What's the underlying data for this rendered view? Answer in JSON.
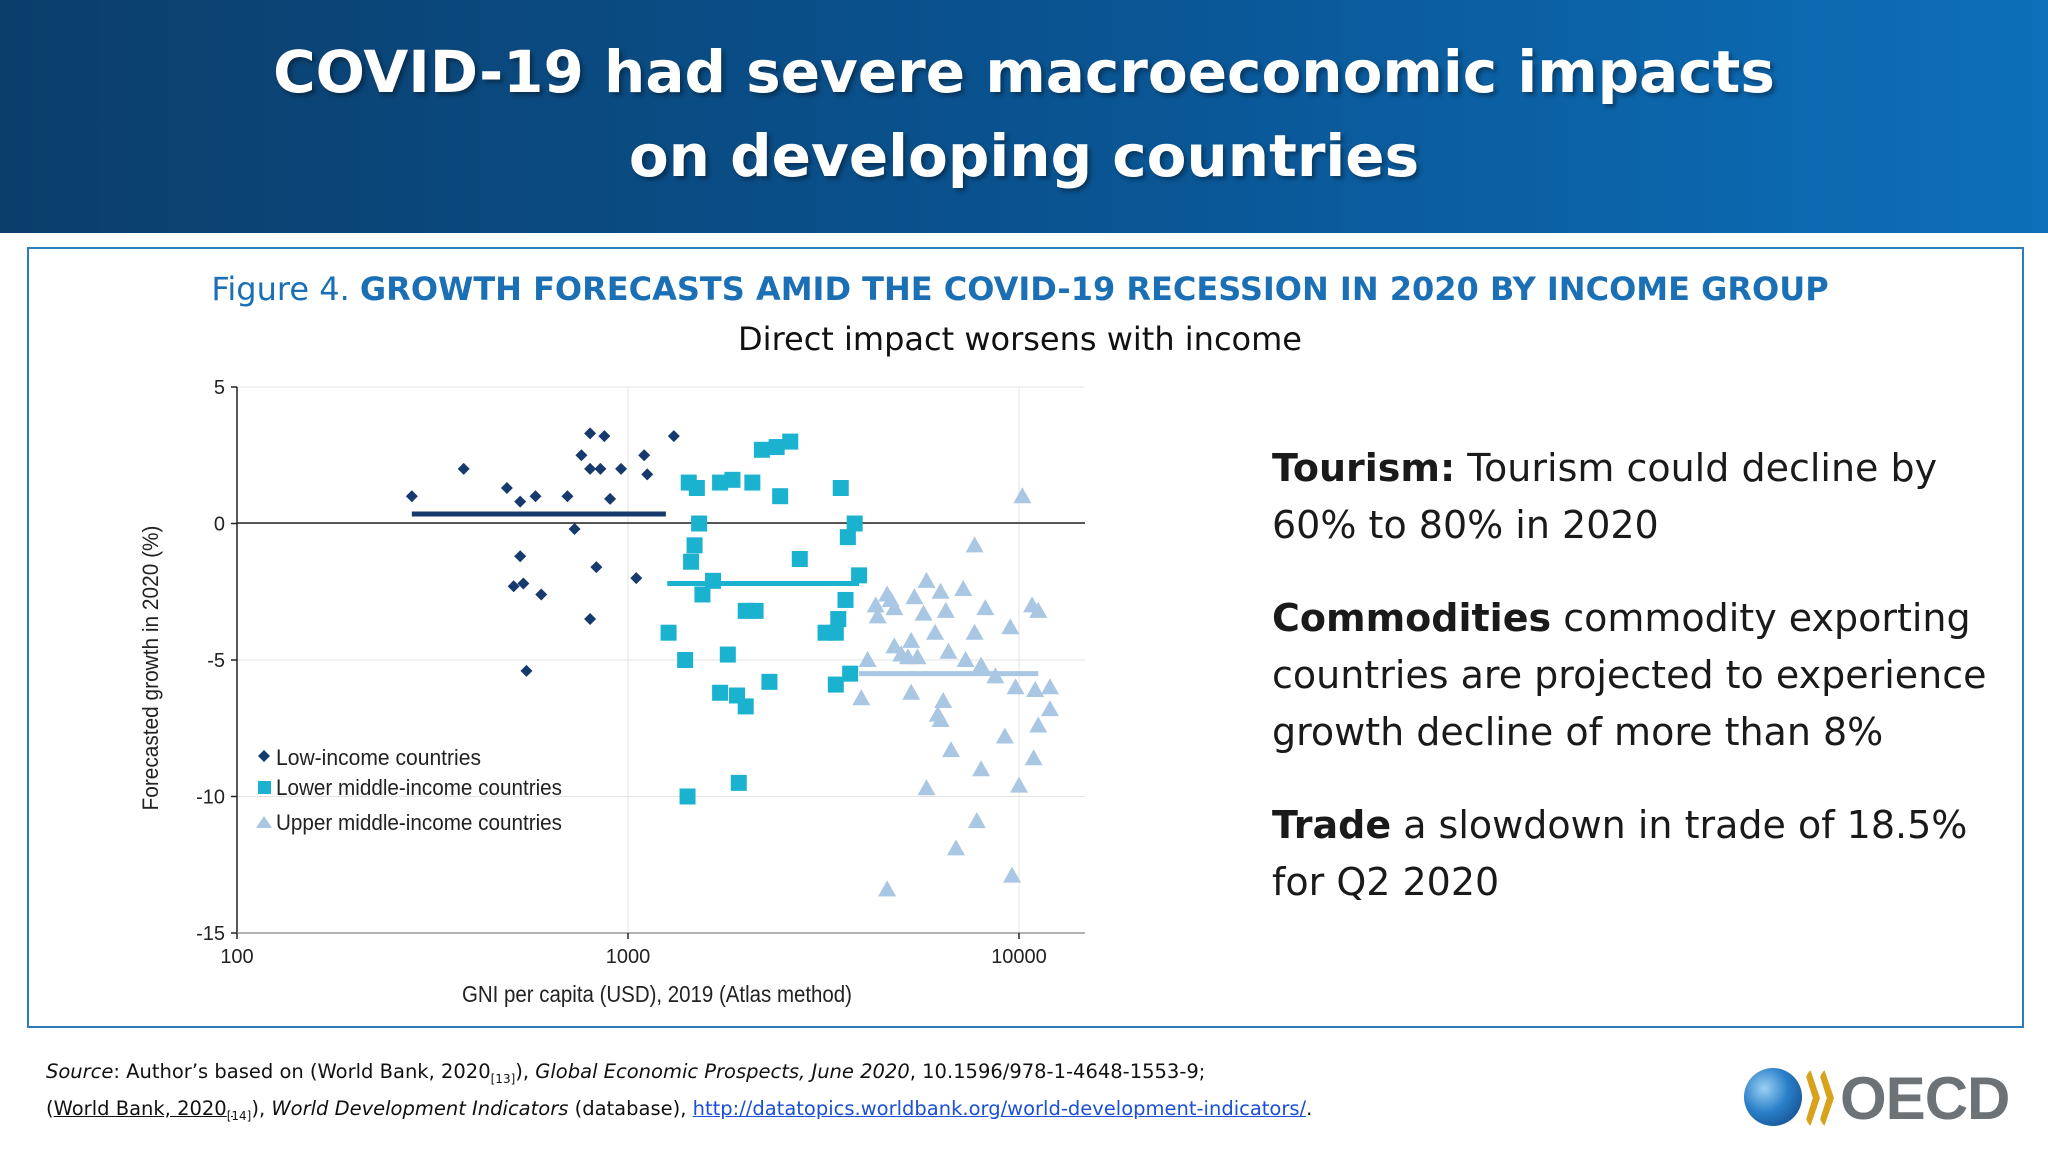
{
  "header": {
    "title_line1": "COVID-19 had severe macroeconomic impacts",
    "title_line2": "on developing countries"
  },
  "figure": {
    "label": "Figure 4.",
    "title": "GROWTH FORECASTS AMID THE COVID-19 RECESSION IN 2020 BY INCOME GROUP",
    "subtitle": "Direct impact worsens with income"
  },
  "bullets": [
    {
      "head": "Tourism:",
      "text": " Tourism could decline by 60% to 80% in 2020"
    },
    {
      "head": "Commodities",
      "text": " commodity exporting countries are projected to experience growth decline of more than 8%"
    },
    {
      "head": "Trade",
      "text": " a slowdown in trade of 18.5% for Q2 2020"
    }
  ],
  "source": {
    "label": "Source",
    "line1_a": ": Author’s based on (World Bank, 2020",
    "ref1": "[13]",
    "line1_b": "), ",
    "pub1": "Global Economic Prospects, June 2020",
    "line1_c": ", 10.1596/978-1-4648-1553-9;",
    "line2_a": "(",
    "link_wb": "World Bank, 2020",
    "ref2": "[14]",
    "line2_b": "), ",
    "pub2": "World Development Indicators",
    "line2_c": " (database), ",
    "url": "http://datatopics.worldbank.org/world-development-indicators/",
    "line2_d": "."
  },
  "logo": {
    "text": "OECD"
  },
  "colors": {
    "low": "#173a6e",
    "lower_middle": "#1ab2cf",
    "upper_middle": "#a9c6e3",
    "accent": "#1a6fb5"
  },
  "chart_data": {
    "type": "scatter",
    "xlabel": "GNI per capita (USD), 2019 (Atlas method)",
    "ylabel": "Forecasted growth in 2020 (%)",
    "xscale": "log",
    "xlim": [
      100,
      13000
    ],
    "ylim": [
      -15,
      5
    ],
    "xticks": [
      "100",
      "1000",
      "10000"
    ],
    "yticks": [
      "5",
      "0",
      "-5",
      "-10",
      "-15"
    ],
    "legend_position": "bottom-left",
    "series": [
      {
        "name": "Low-income countries",
        "marker": "diamond",
        "mean": {
          "x": [
            280,
            1250
          ],
          "y": 0.35
        },
        "points": [
          [
            280,
            1.0
          ],
          [
            380,
            2.0
          ],
          [
            490,
            1.3
          ],
          [
            530,
            0.8
          ],
          [
            580,
            1.0
          ],
          [
            700,
            1.0
          ],
          [
            760,
            2.5
          ],
          [
            800,
            3.3
          ],
          [
            870,
            3.2
          ],
          [
            800,
            2.0
          ],
          [
            850,
            2.0
          ],
          [
            900,
            0.9
          ],
          [
            960,
            2.0
          ],
          [
            1100,
            2.5
          ],
          [
            1120,
            1.8
          ],
          [
            1310,
            3.2
          ],
          [
            730,
            -0.2
          ],
          [
            530,
            -1.2
          ],
          [
            510,
            -2.3
          ],
          [
            540,
            -2.2
          ],
          [
            600,
            -2.6
          ],
          [
            830,
            -1.6
          ],
          [
            1050,
            -2.0
          ],
          [
            800,
            -3.5
          ],
          [
            550,
            -5.4
          ]
        ]
      },
      {
        "name": "Lower middle-income countries",
        "marker": "square",
        "mean": {
          "x": [
            1260,
            3900
          ],
          "y": -2.2
        },
        "points": [
          [
            1430,
            1.5
          ],
          [
            1500,
            1.3
          ],
          [
            1720,
            1.5
          ],
          [
            1850,
            1.6
          ],
          [
            2080,
            1.5
          ],
          [
            2200,
            2.7
          ],
          [
            2400,
            2.8
          ],
          [
            2600,
            3.0
          ],
          [
            3500,
            1.3
          ],
          [
            2450,
            1.0
          ],
          [
            1520,
            0.0
          ],
          [
            1480,
            -0.8
          ],
          [
            1450,
            -1.4
          ],
          [
            1650,
            -2.1
          ],
          [
            1550,
            -2.6
          ],
          [
            2000,
            -3.2
          ],
          [
            2120,
            -3.2
          ],
          [
            2750,
            -1.3
          ],
          [
            3800,
            0.0
          ],
          [
            3650,
            -0.5
          ],
          [
            3900,
            -1.9
          ],
          [
            3600,
            -2.8
          ],
          [
            3200,
            -4.0
          ],
          [
            3400,
            -4.0
          ],
          [
            3450,
            -3.5
          ],
          [
            3400,
            -5.9
          ],
          [
            3700,
            -5.5
          ],
          [
            1270,
            -4.0
          ],
          [
            1400,
            -5.0
          ],
          [
            1800,
            -4.8
          ],
          [
            1720,
            -6.2
          ],
          [
            1900,
            -6.3
          ],
          [
            2000,
            -6.7
          ],
          [
            2300,
            -5.8
          ],
          [
            1420,
            -10.0
          ],
          [
            1920,
            -9.5
          ]
        ]
      },
      {
        "name": "Upper middle-income countries",
        "marker": "triangle",
        "mean": {
          "x": [
            3900,
            11200
          ],
          "y": -5.5
        },
        "points": [
          [
            10200,
            1.0
          ],
          [
            7700,
            -0.8
          ],
          [
            5800,
            -2.1
          ],
          [
            4600,
            -2.6
          ],
          [
            4700,
            -2.8
          ],
          [
            5400,
            -2.7
          ],
          [
            6300,
            -2.5
          ],
          [
            7200,
            -2.4
          ],
          [
            4300,
            -3.0
          ],
          [
            4800,
            -3.1
          ],
          [
            5700,
            -3.3
          ],
          [
            6500,
            -3.2
          ],
          [
            8200,
            -3.1
          ],
          [
            10800,
            -3.0
          ],
          [
            11200,
            -3.2
          ],
          [
            4350,
            -3.4
          ],
          [
            6100,
            -4.0
          ],
          [
            7700,
            -4.0
          ],
          [
            9500,
            -3.8
          ],
          [
            5300,
            -4.3
          ],
          [
            4800,
            -4.5
          ],
          [
            5000,
            -4.8
          ],
          [
            5200,
            -4.9
          ],
          [
            5500,
            -4.9
          ],
          [
            6600,
            -4.7
          ],
          [
            7300,
            -5.0
          ],
          [
            4100,
            -5.0
          ],
          [
            8000,
            -5.2
          ],
          [
            8700,
            -5.6
          ],
          [
            5300,
            -6.2
          ],
          [
            3950,
            -6.4
          ],
          [
            6400,
            -6.5
          ],
          [
            9800,
            -6.0
          ],
          [
            11000,
            -6.1
          ],
          [
            12000,
            -6.0
          ],
          [
            6200,
            -7.0
          ],
          [
            6300,
            -7.2
          ],
          [
            9200,
            -7.8
          ],
          [
            11200,
            -7.4
          ],
          [
            12000,
            -6.8
          ],
          [
            6700,
            -8.3
          ],
          [
            8000,
            -9.0
          ],
          [
            10900,
            -8.6
          ],
          [
            5800,
            -9.7
          ],
          [
            10000,
            -9.6
          ],
          [
            7800,
            -10.9
          ],
          [
            6900,
            -11.9
          ],
          [
            9600,
            -12.9
          ],
          [
            4600,
            -13.4
          ]
        ]
      }
    ]
  }
}
